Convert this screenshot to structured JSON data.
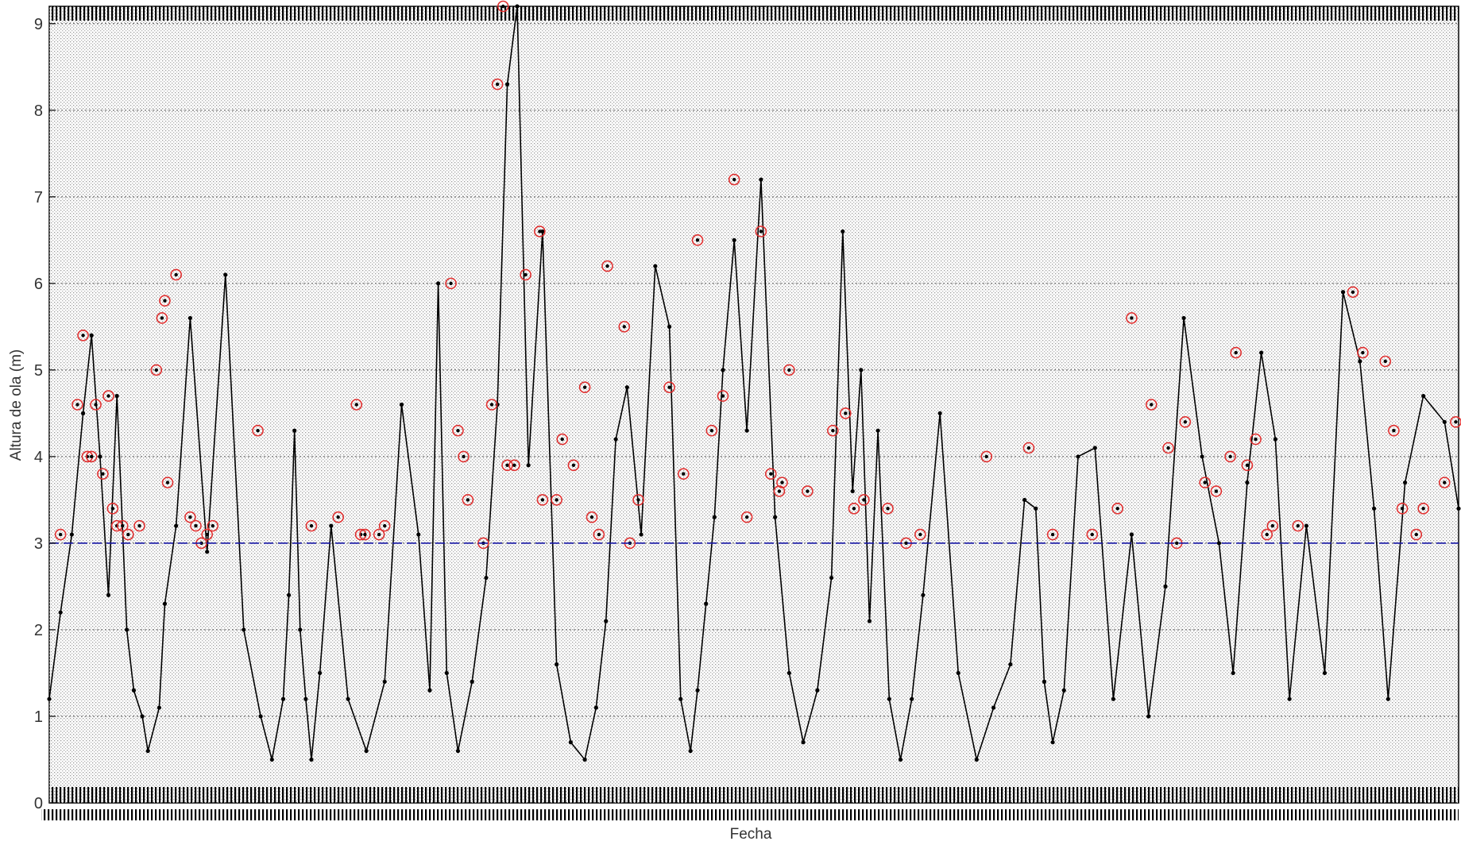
{
  "chart_data": {
    "type": "line",
    "title": "",
    "xlabel": "Fecha",
    "ylabel": "Altura de ola (m)",
    "ylim": [
      0,
      9.2
    ],
    "yticks": [
      0,
      1,
      2,
      3,
      4,
      5,
      6,
      7,
      8,
      9
    ],
    "grid": true,
    "legend": "none",
    "threshold": {
      "value": 3,
      "style": "dashed",
      "color": "#1a1aa8"
    },
    "colors": {
      "series": "#000000",
      "peaks": "#e03030",
      "threshold": "#1a1aa8",
      "grid": "#555555"
    },
    "x_index_range": [
      0,
      1000
    ],
    "series": [
      {
        "marker": "dot",
        "x": [
          0,
          8,
          16,
          24,
          30,
          36,
          42,
          48,
          55,
          60,
          66,
          70,
          78,
          82,
          90,
          100,
          112,
          125,
          138,
          150,
          158,
          166,
          170,
          174,
          178,
          182,
          186,
          192,
          200,
          212,
          225,
          238,
          250,
          262,
          270,
          276,
          282,
          290,
          300,
          310,
          318,
          325,
          332,
          340,
          350,
          360,
          370,
          380,
          388,
          395,
          402,
          410,
          420,
          430,
          440,
          448,
          455,
          460,
          466,
          472,
          478,
          486,
          495,
          505,
          515,
          525,
          535,
          545,
          555,
          563,
          570,
          576,
          582,
          588,
          596,
          604,
          612,
          620,
          632,
          645,
          658,
          670,
          682,
          692,
          700,
          706,
          712,
          720,
          730,
          742,
          755,
          768,
          780,
          792,
          805,
          818,
          830,
          840,
          850,
          860,
          870,
          880,
          892,
          905,
          918,
          930,
          940,
          950,
          962,
          975,
          990,
          1000
        ],
        "y": [
          1.2,
          2.2,
          3.1,
          4.5,
          5.4,
          4.0,
          2.4,
          4.7,
          2.0,
          1.3,
          1.0,
          0.6,
          1.1,
          2.3,
          3.2,
          5.6,
          2.9,
          6.1,
          2.0,
          1.0,
          0.5,
          1.2,
          2.4,
          4.3,
          2.0,
          1.2,
          0.5,
          1.5,
          3.2,
          1.2,
          0.6,
          1.4,
          4.6,
          3.1,
          1.3,
          6.0,
          1.5,
          0.6,
          1.4,
          2.6,
          4.6,
          8.3,
          9.2,
          3.9,
          6.6,
          1.6,
          0.7,
          0.5,
          1.1,
          2.1,
          4.2,
          4.8,
          3.1,
          6.2,
          5.5,
          1.2,
          0.6,
          1.3,
          2.3,
          3.3,
          5.0,
          6.5,
          4.3,
          7.2,
          3.3,
          1.5,
          0.7,
          1.3,
          2.6,
          6.6,
          3.6,
          5.0,
          2.1,
          4.3,
          1.2,
          0.5,
          1.2,
          2.4,
          4.5,
          1.5,
          0.5,
          1.1,
          1.6,
          3.5,
          3.4,
          1.4,
          0.7,
          1.3,
          4.0,
          4.1,
          1.2,
          3.1,
          1.0,
          2.5,
          5.6,
          4.0,
          3.0,
          1.5,
          3.7,
          5.2,
          4.2,
          1.2,
          3.2,
          1.5,
          5.9,
          5.1,
          3.4,
          1.2,
          3.7,
          4.7,
          4.4,
          3.4
        ]
      },
      {
        "name": "",
        "marker": "circle",
        "x": [
          8,
          20,
          24,
          27,
          30,
          33,
          38,
          42,
          45,
          48,
          52,
          56,
          64,
          76,
          80,
          82,
          84,
          90,
          100,
          104,
          108,
          112,
          116,
          148,
          186,
          205,
          218,
          221,
          224,
          234,
          238,
          285,
          290,
          294,
          297,
          308,
          314,
          318,
          322,
          325,
          330,
          338,
          348,
          350,
          360,
          364,
          372,
          380,
          385,
          390,
          396,
          408,
          412,
          418,
          440,
          450,
          460,
          470,
          478,
          486,
          495,
          505,
          512,
          518,
          520,
          525,
          538,
          556,
          565,
          571,
          578,
          595,
          608,
          618,
          665,
          695,
          712,
          740,
          758,
          768,
          782,
          794,
          800,
          806,
          820,
          828,
          838,
          842,
          850,
          856,
          864,
          868,
          886,
          925,
          932,
          948,
          954,
          960,
          970,
          975,
          990,
          998
        ],
        "y": [
          3.1,
          4.6,
          5.4,
          4.0,
          4.0,
          4.6,
          3.8,
          4.7,
          3.4,
          3.2,
          3.2,
          3.1,
          3.2,
          5.0,
          5.6,
          5.8,
          3.7,
          6.1,
          3.3,
          3.2,
          3.0,
          3.1,
          3.2,
          4.3,
          3.2,
          3.3,
          4.6,
          3.1,
          3.1,
          3.1,
          3.2,
          6.0,
          4.3,
          4.0,
          3.5,
          3.0,
          4.6,
          8.3,
          9.2,
          3.9,
          3.9,
          6.1,
          6.6,
          3.5,
          3.5,
          4.2,
          3.9,
          4.8,
          3.3,
          3.1,
          6.2,
          5.5,
          3.0,
          3.5,
          4.8,
          3.8,
          6.5,
          4.3,
          4.7,
          7.2,
          3.3,
          6.6,
          3.8,
          3.6,
          3.7,
          5.0,
          3.6,
          4.3,
          4.5,
          3.4,
          3.5,
          3.4,
          3.0,
          3.1,
          4.0,
          4.1,
          3.1,
          3.1,
          3.4,
          5.6,
          4.6,
          4.1,
          3.0,
          4.4,
          3.7,
          3.6,
          4.0,
          5.2,
          3.9,
          4.2,
          3.1,
          3.2,
          3.2,
          5.9,
          5.2,
          5.1,
          4.3,
          3.4,
          3.1,
          3.4,
          3.7,
          4.4
        ]
      }
    ]
  }
}
